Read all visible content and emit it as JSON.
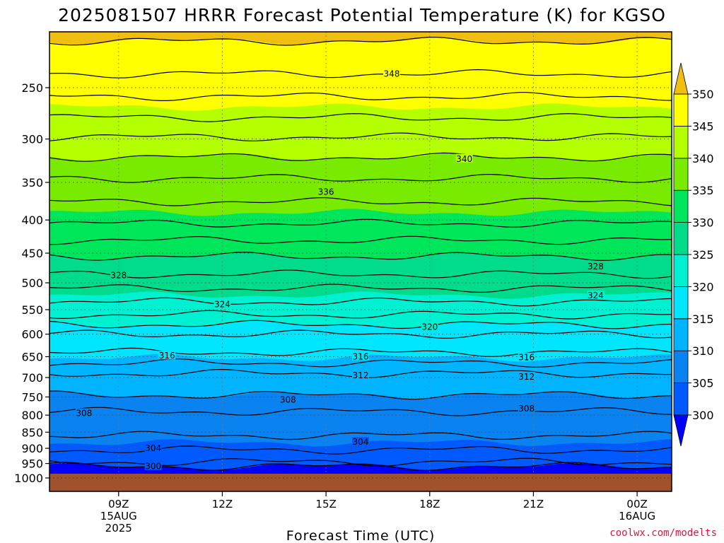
{
  "chart_data": {
    "type": "contour",
    "title": "2025081507 HRRR Forecast Potential Temperature (K) for KGSO",
    "xlabel": "Forecast Time (UTC)",
    "ylabel": "",
    "x": {
      "ticks": [
        {
          "hour": 9,
          "lines": [
            "09Z",
            "15AUG",
            "2025"
          ]
        },
        {
          "hour": 12,
          "lines": [
            "12Z"
          ]
        },
        {
          "hour": 15,
          "lines": [
            "15Z"
          ]
        },
        {
          "hour": 18,
          "lines": [
            "18Z"
          ]
        },
        {
          "hour": 21,
          "lines": [
            "21Z"
          ]
        },
        {
          "hour": 24,
          "lines": [
            "00Z",
            "16AUG"
          ]
        }
      ],
      "range_hours": [
        7.0,
        25.0
      ]
    },
    "y": {
      "scale": "log-pressure",
      "ticks": [
        250,
        300,
        350,
        400,
        450,
        500,
        550,
        600,
        650,
        700,
        750,
        800,
        850,
        900,
        950,
        1000
      ],
      "tick_labels": [
        "250",
        "300",
        "350",
        "400",
        "450",
        "500",
        "550",
        "600",
        "650",
        "700",
        "750",
        "800",
        "850",
        "900",
        "950",
        "1000"
      ],
      "range_hPa": [
        200,
        1030
      ],
      "grid": "dotted"
    },
    "colorbar": {
      "labels": [
        "350",
        "345",
        "340",
        "335",
        "330",
        "325",
        "320",
        "315",
        "310",
        "305",
        "300"
      ],
      "bands": [
        {
          "min": 350,
          "color": "#f0be10"
        },
        {
          "min": 345,
          "max": 350,
          "color": "#ffff00"
        },
        {
          "min": 340,
          "max": 345,
          "color": "#b4ff00"
        },
        {
          "min": 335,
          "max": 340,
          "color": "#78eb00"
        },
        {
          "min": 330,
          "max": 335,
          "color": "#00e65a"
        },
        {
          "min": 325,
          "max": 330,
          "color": "#00dc8c"
        },
        {
          "min": 320,
          "max": 325,
          "color": "#00f0d2"
        },
        {
          "min": 315,
          "max": 320,
          "color": "#00e6ff"
        },
        {
          "min": 310,
          "max": 315,
          "color": "#00b4ff"
        },
        {
          "min": 305,
          "max": 310,
          "color": "#0a82f0"
        },
        {
          "min": 300,
          "max": 305,
          "color": "#005aff"
        },
        {
          "max": 300,
          "color": "#0000ff"
        }
      ]
    },
    "contour_interval_K": 2,
    "contours": [
      {
        "value": 300,
        "pressure_hPa": 960
      },
      {
        "value": 302,
        "pressure_hPa": 945
      },
      {
        "value": 304,
        "pressure_hPa": 905
      },
      {
        "value": 306,
        "pressure_hPa": 860
      },
      {
        "value": 308,
        "pressure_hPa": 790
      },
      {
        "value": 310,
        "pressure_hPa": 745
      },
      {
        "value": 312,
        "pressure_hPa": 690
      },
      {
        "value": 314,
        "pressure_hPa": 665
      },
      {
        "value": 316,
        "pressure_hPa": 640
      },
      {
        "value": 318,
        "pressure_hPa": 600
      },
      {
        "value": 320,
        "pressure_hPa": 580
      },
      {
        "value": 322,
        "pressure_hPa": 560
      },
      {
        "value": 324,
        "pressure_hPa": 535
      },
      {
        "value": 326,
        "pressure_hPa": 510
      },
      {
        "value": 328,
        "pressure_hPa": 485
      },
      {
        "value": 330,
        "pressure_hPa": 455
      },
      {
        "value": 332,
        "pressure_hPa": 430
      },
      {
        "value": 334,
        "pressure_hPa": 405
      },
      {
        "value": 336,
        "pressure_hPa": 375
      },
      {
        "value": 338,
        "pressure_hPa": 345
      },
      {
        "value": 340,
        "pressure_hPa": 320
      },
      {
        "value": 342,
        "pressure_hPa": 298
      },
      {
        "value": 344,
        "pressure_hPa": 278
      },
      {
        "value": 346,
        "pressure_hPa": 258
      },
      {
        "value": 348,
        "pressure_hPa": 238
      },
      {
        "value": 350,
        "pressure_hPa": 212
      }
    ],
    "contour_labels": [
      {
        "text": "348",
        "hour": 16.9,
        "pressure_hPa": 238
      },
      {
        "text": "340",
        "hour": 19.0,
        "pressure_hPa": 322
      },
      {
        "text": "336",
        "hour": 15.0,
        "pressure_hPa": 362
      },
      {
        "text": "328",
        "hour": 9.0,
        "pressure_hPa": 487
      },
      {
        "text": "328",
        "hour": 22.8,
        "pressure_hPa": 472
      },
      {
        "text": "324",
        "hour": 12.0,
        "pressure_hPa": 540
      },
      {
        "text": "324",
        "hour": 22.8,
        "pressure_hPa": 523
      },
      {
        "text": "320",
        "hour": 18.0,
        "pressure_hPa": 585
      },
      {
        "text": "316",
        "hour": 10.4,
        "pressure_hPa": 648
      },
      {
        "text": "316",
        "hour": 16.0,
        "pressure_hPa": 650
      },
      {
        "text": "316",
        "hour": 20.8,
        "pressure_hPa": 652
      },
      {
        "text": "312",
        "hour": 16.0,
        "pressure_hPa": 695
      },
      {
        "text": "312",
        "hour": 20.8,
        "pressure_hPa": 698
      },
      {
        "text": "308",
        "hour": 13.9,
        "pressure_hPa": 758
      },
      {
        "text": "308",
        "hour": 8.0,
        "pressure_hPa": 795
      },
      {
        "text": "308",
        "hour": 20.8,
        "pressure_hPa": 782
      },
      {
        "text": "304",
        "hour": 10.0,
        "pressure_hPa": 900
      },
      {
        "text": "304",
        "hour": 16.0,
        "pressure_hPa": 880
      },
      {
        "text": "300",
        "hour": 10.0,
        "pressure_hPa": 960
      }
    ],
    "surface_pressure_hPa": 985
  },
  "credit": "coolwx.com/modelts"
}
